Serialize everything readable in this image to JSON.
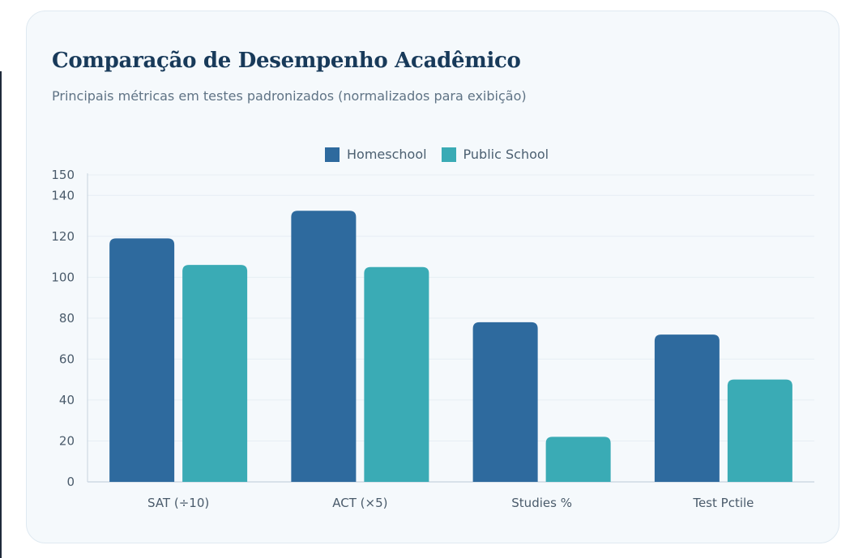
{
  "header": {
    "title": "Comparação de Desempenho Acadêmico",
    "subtitle": "Principais métricas em testes padronizados (normalizados para exibição)"
  },
  "colors": {
    "homeschool": "#2e6a9e",
    "public_school": "#3aabb5",
    "grid": "#e6eef4",
    "axis": "#c7d3de"
  },
  "chart_data": {
    "type": "bar",
    "categories": [
      "SAT (÷10)",
      "ACT (×5)",
      "Studies %",
      "Test Pctile"
    ],
    "series": [
      {
        "name": "Homeschool",
        "values": [
          119,
          132.5,
          78,
          72
        ],
        "color": "#2e6a9e"
      },
      {
        "name": "Public School",
        "values": [
          106,
          105,
          22,
          50
        ],
        "color": "#3aabb5"
      }
    ],
    "title": "",
    "xlabel": "",
    "ylabel": "",
    "ylim": [
      0,
      150
    ],
    "yticks": [
      0,
      20,
      40,
      60,
      80,
      100,
      120,
      140,
      150
    ],
    "grid": true,
    "legend": "top-center"
  }
}
